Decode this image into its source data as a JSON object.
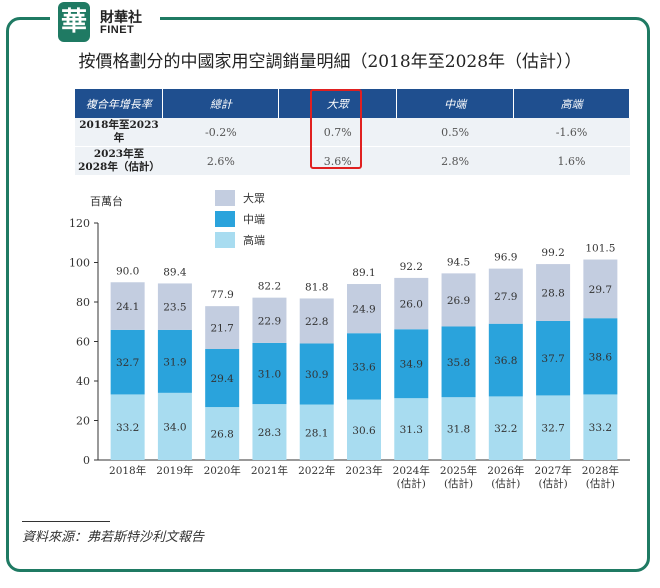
{
  "brand": {
    "mark": "華",
    "name_cn": "財華社",
    "name_en": "FINET"
  },
  "title": "按價格劃分的中國家用空調銷量明細（2018年至2028年（估計））",
  "table": {
    "headers": [
      "複合年增長率",
      "總計",
      "大眾",
      "中端",
      "高端"
    ],
    "rows": [
      {
        "label": "2018年至2023年",
        "values": [
          "-0.2%",
          "0.7%",
          "0.5%",
          "-1.6%"
        ]
      },
      {
        "label": "2023年至\n2028年（估計）",
        "values": [
          "2.6%",
          "3.6%",
          "2.8%",
          "1.6%"
        ]
      }
    ]
  },
  "chart_data": {
    "type": "bar",
    "stacked": true,
    "ylabel": "百萬台",
    "ylim": [
      0,
      120
    ],
    "yticks": [
      0,
      20,
      40,
      60,
      80,
      100,
      120
    ],
    "categories": [
      "2018年",
      "2019年",
      "2020年",
      "2021年",
      "2022年",
      "2023年",
      "2024年\n(估計)",
      "2025年\n(估計)",
      "2026年\n(估計)",
      "2027年\n(估計)",
      "2028年\n(估計)"
    ],
    "series": [
      {
        "name": "高端",
        "color": "#a8dcf0",
        "values": [
          33.2,
          34.0,
          26.8,
          28.3,
          28.1,
          30.6,
          31.3,
          31.8,
          32.2,
          32.7,
          33.2
        ]
      },
      {
        "name": "中端",
        "color": "#2aa3dc",
        "values": [
          32.7,
          31.9,
          29.4,
          31.0,
          30.9,
          33.6,
          34.9,
          35.8,
          36.8,
          37.7,
          38.6
        ]
      },
      {
        "name": "大眾",
        "color": "#c3cde0",
        "values": [
          24.1,
          23.5,
          21.7,
          22.9,
          22.8,
          24.9,
          26.0,
          26.9,
          27.9,
          28.8,
          29.7
        ]
      }
    ],
    "totals": [
      "90.0",
      "89.4",
      "77.9",
      "82.2",
      "81.8",
      "89.1",
      "92.2",
      "94.5",
      "96.9",
      "99.2",
      "101.5"
    ],
    "legend": [
      "大眾",
      "中端",
      "高端"
    ],
    "legend_position": "top-left"
  },
  "source": "資料來源：弗若斯特沙利文報告"
}
